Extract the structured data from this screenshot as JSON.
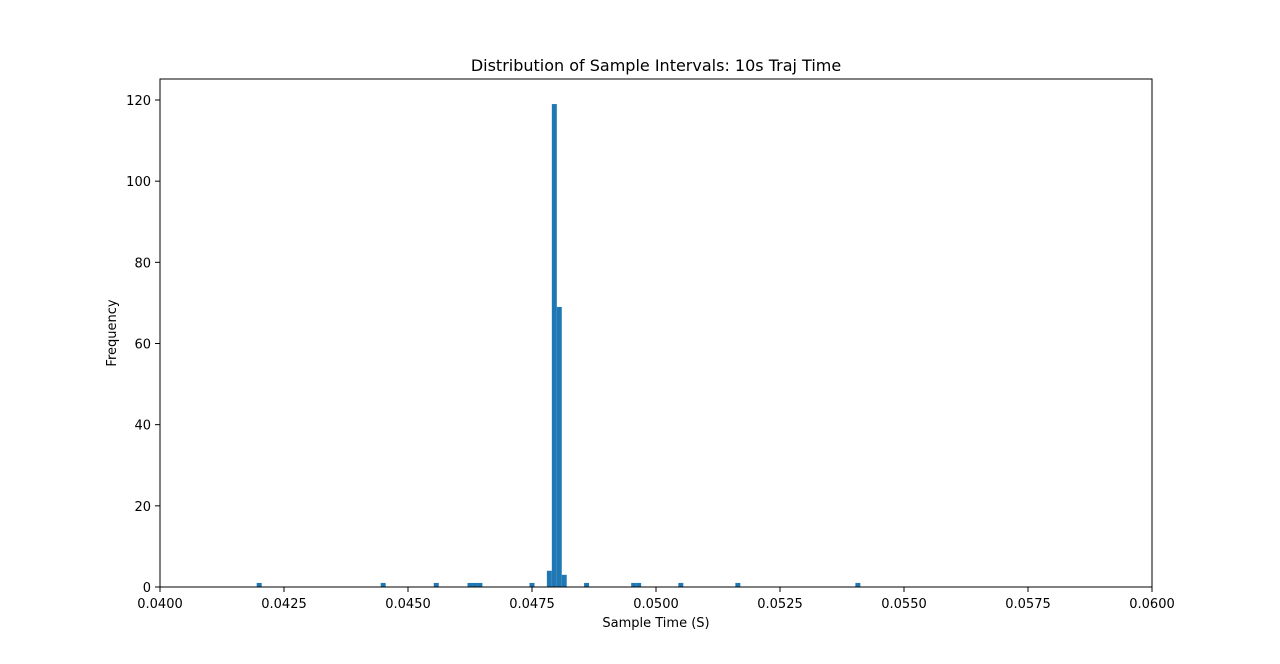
{
  "chart_data": {
    "type": "bar",
    "title": "Distribution of Sample Intervals: 10s Traj Time",
    "xlabel": "Sample Time (S)",
    "ylabel": "Frequency",
    "xlim": [
      0.04,
      0.06
    ],
    "ylim": [
      0,
      125
    ],
    "bin_width": 0.0001,
    "grid": false,
    "bar_color": "#1f77b4",
    "x_ticks": [
      0.04,
      0.0425,
      0.045,
      0.0475,
      0.05,
      0.0525,
      0.055,
      0.0575,
      0.06
    ],
    "x_tick_labels": [
      "0.0400",
      "0.0425",
      "0.0450",
      "0.0475",
      "0.0500",
      "0.0525",
      "0.0550",
      "0.0575",
      "0.0600"
    ],
    "y_ticks": [
      0,
      20,
      40,
      60,
      80,
      100,
      120
    ],
    "y_tick_labels": [
      "0",
      "20",
      "40",
      "60",
      "80",
      "100",
      "120"
    ],
    "bins": [
      {
        "x": 0.04195,
        "count": 1
      },
      {
        "x": 0.04445,
        "count": 1
      },
      {
        "x": 0.04552,
        "count": 1
      },
      {
        "x": 0.0462,
        "count": 1
      },
      {
        "x": 0.0463,
        "count": 1
      },
      {
        "x": 0.0464,
        "count": 1
      },
      {
        "x": 0.04745,
        "count": 1
      },
      {
        "x": 0.0478,
        "count": 4
      },
      {
        "x": 0.0479,
        "count": 119
      },
      {
        "x": 0.048,
        "count": 69
      },
      {
        "x": 0.0481,
        "count": 3
      },
      {
        "x": 0.04855,
        "count": 1
      },
      {
        "x": 0.0495,
        "count": 1
      },
      {
        "x": 0.0496,
        "count": 1
      },
      {
        "x": 0.05045,
        "count": 1
      },
      {
        "x": 0.0516,
        "count": 1
      },
      {
        "x": 0.05402,
        "count": 1
      }
    ]
  }
}
